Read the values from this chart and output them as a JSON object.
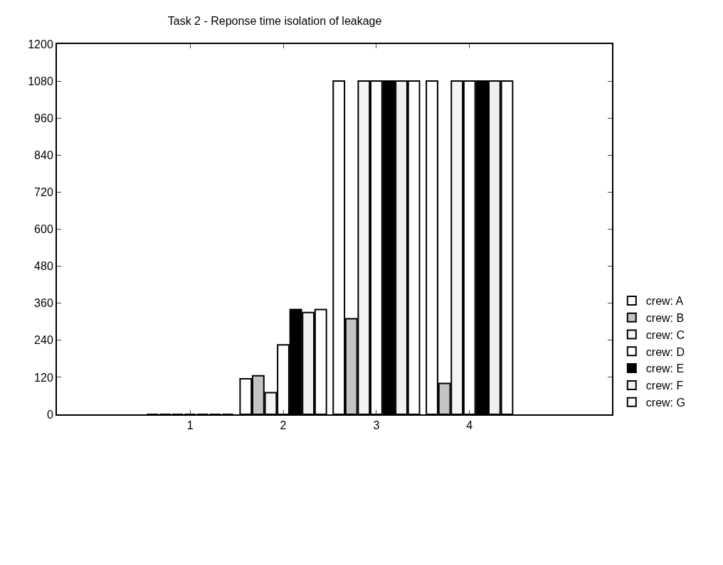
{
  "chart_data": {
    "type": "bar",
    "title": "Task 2 - Reponse time isolation of leakage",
    "categories": [
      "1",
      "2",
      "3",
      "4"
    ],
    "series": [
      {
        "name": "crew: A",
        "color": "#ffffff",
        "values": [
          0,
          115,
          1080,
          1080
        ]
      },
      {
        "name": "crew: B",
        "color": "#c4c4c4",
        "values": [
          0,
          125,
          310,
          100
        ]
      },
      {
        "name": "crew: C",
        "color": "#f4f4f4",
        "values": [
          0,
          70,
          1080,
          1080
        ]
      },
      {
        "name": "crew: D",
        "color": "#ffffff",
        "values": [
          0,
          225,
          1080,
          1080
        ]
      },
      {
        "name": "crew: E",
        "color": "#000000",
        "values": [
          0,
          340,
          1080,
          1080
        ]
      },
      {
        "name": "crew: F",
        "color": "#f0f0f0",
        "values": [
          0,
          330,
          1080,
          1080
        ]
      },
      {
        "name": "crew: G",
        "color": "#ffffff",
        "values": [
          0,
          340,
          1080,
          1080
        ]
      }
    ],
    "ylim": [
      0,
      1200
    ],
    "yticks": [
      0,
      120,
      240,
      360,
      480,
      600,
      720,
      840,
      960,
      1080,
      1200
    ],
    "grid": false,
    "legend": "bottom right"
  }
}
